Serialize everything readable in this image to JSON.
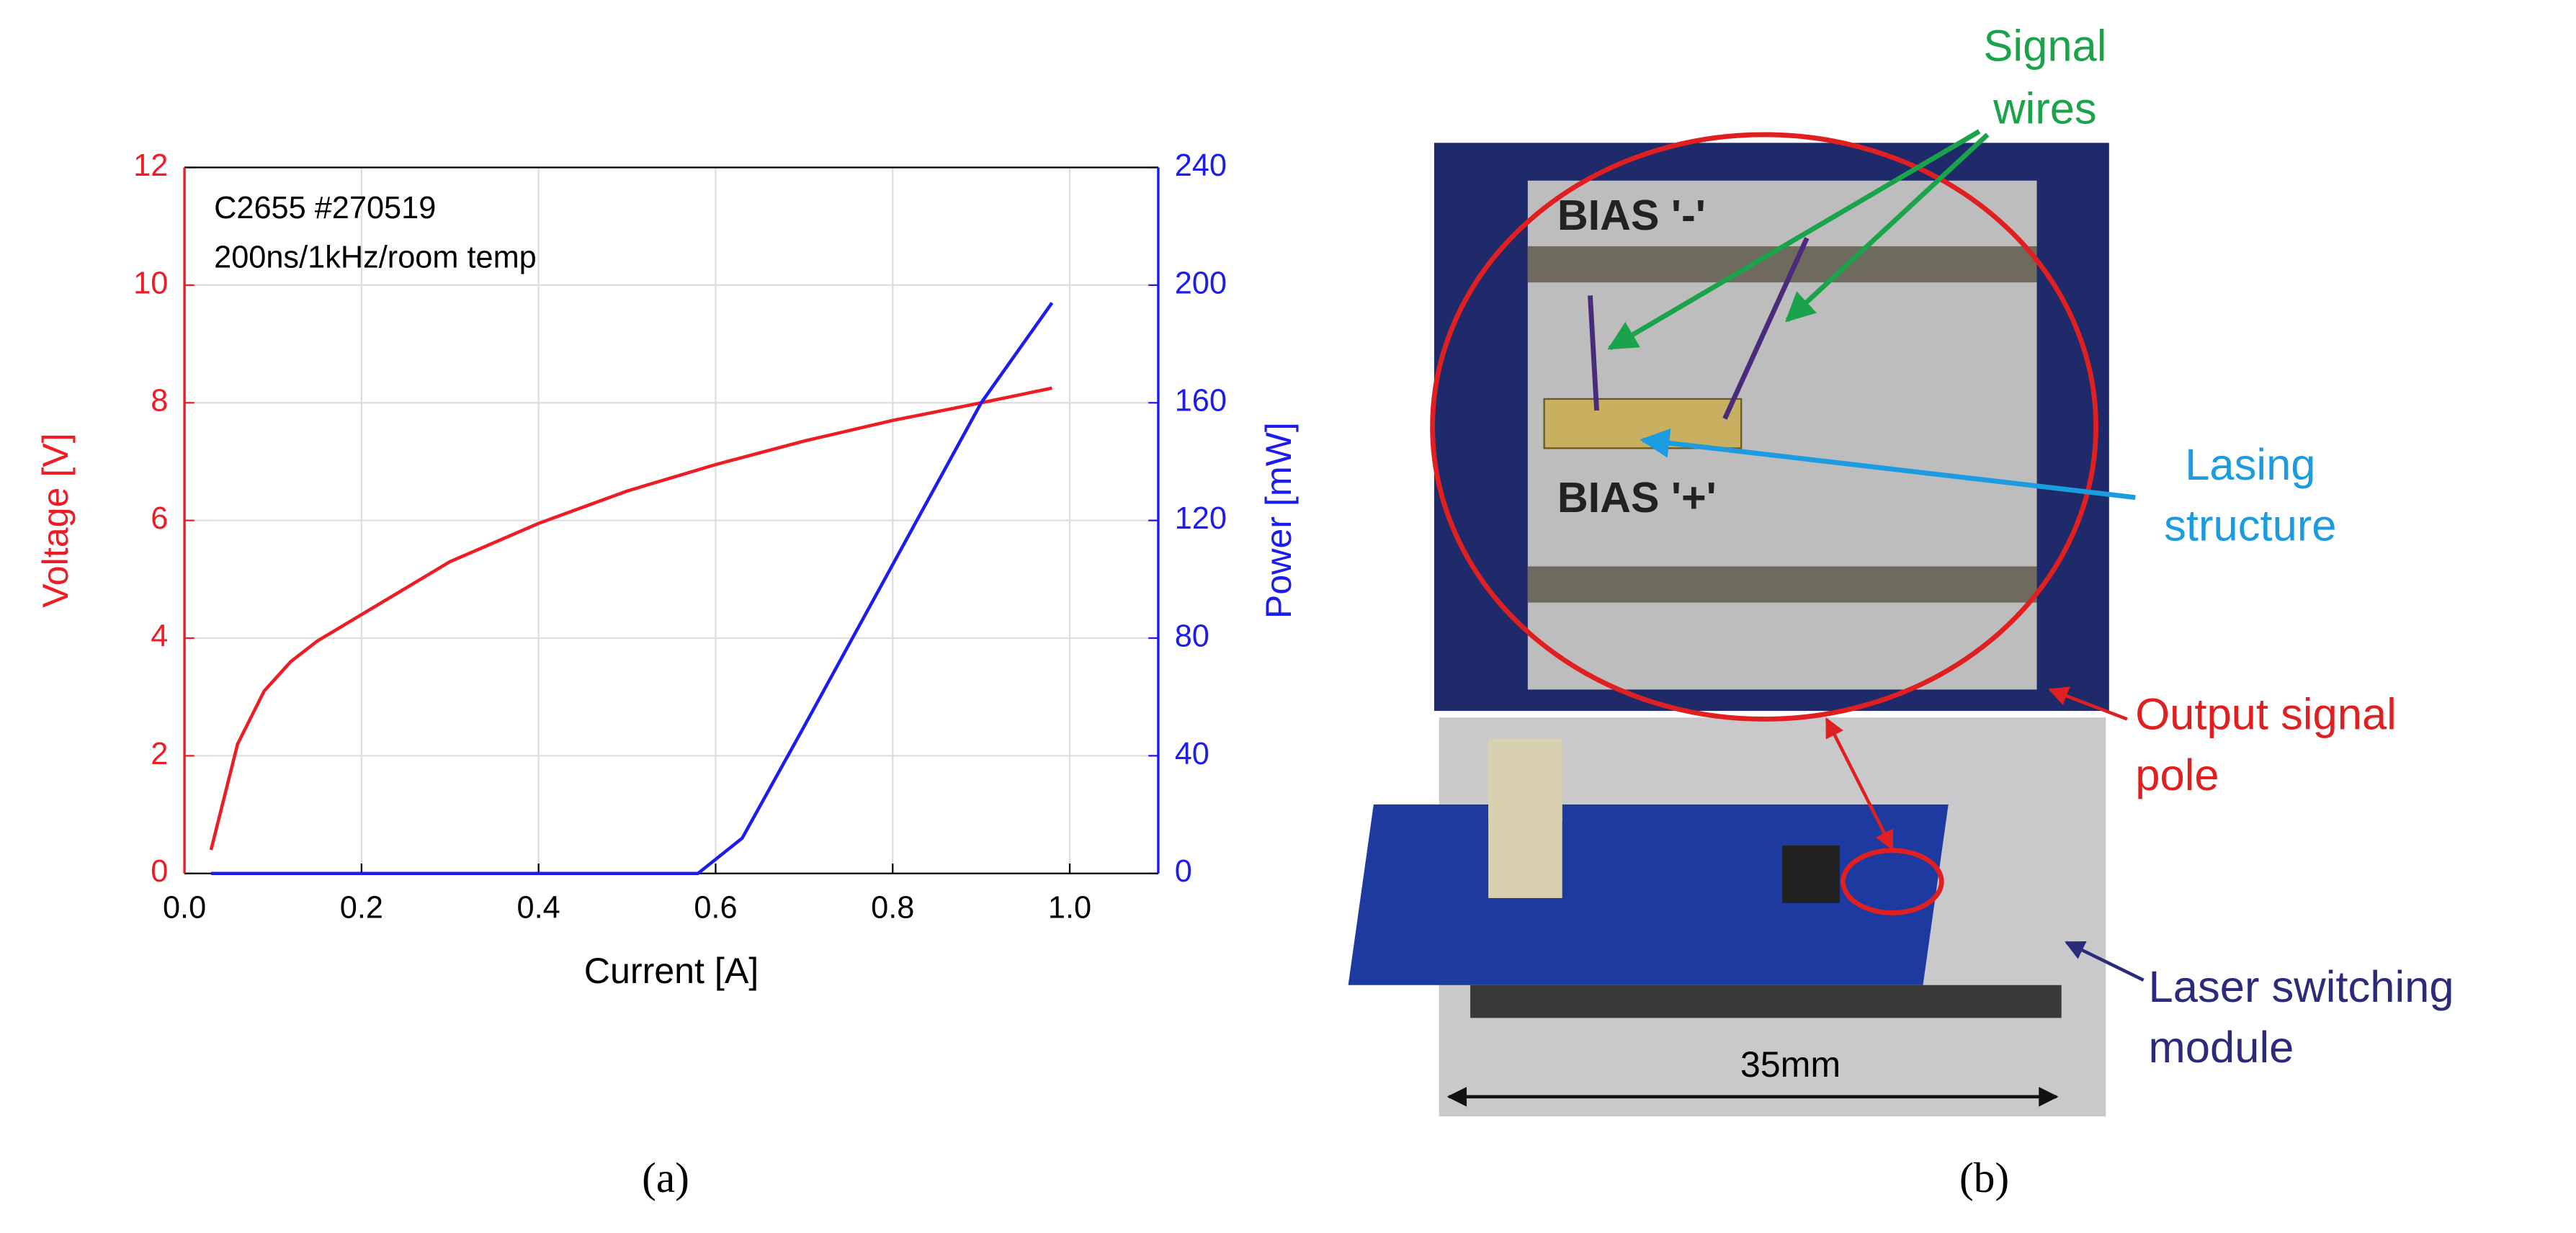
{
  "chart_data": {
    "type": "line",
    "annotations": [
      "C2655 #270519",
      "200ns/1kHz/room temp"
    ],
    "x_label": "Current [A]",
    "y_label": "Voltage [V]",
    "y2_label": "Power [mW]",
    "xlim": [
      0,
      1.1
    ],
    "xticks": [
      {
        "value": 0,
        "label": "0.0"
      },
      0.2,
      0.4,
      0.6,
      0.8,
      {
        "value": 1,
        "label": "1.0"
      }
    ],
    "ylim": [
      0,
      12
    ],
    "yticks": [
      0,
      2,
      4,
      6,
      8,
      10,
      12
    ],
    "y2lim": [
      0,
      240
    ],
    "y2ticks": [
      0,
      40,
      80,
      120,
      160,
      200,
      240
    ],
    "grid": true,
    "series": [
      {
        "name": "Voltage",
        "color": "#ee1c25",
        "axis": "y",
        "x": [
          0.03,
          0.06,
          0.09,
          0.12,
          0.15,
          0.2,
          0.3,
          0.4,
          0.5,
          0.6,
          0.7,
          0.8,
          0.9,
          0.98
        ],
        "values": [
          0.4,
          2.2,
          3.1,
          3.6,
          3.95,
          4.4,
          5.3,
          5.95,
          6.5,
          6.95,
          7.35,
          7.7,
          8.0,
          8.25
        ]
      },
      {
        "name": "Power",
        "color": "#1c1cee",
        "axis": "y2",
        "x": [
          0.03,
          0.58,
          0.63,
          0.7,
          0.8,
          0.9,
          0.98
        ],
        "values": [
          0,
          0,
          12,
          50,
          105,
          160,
          194
        ]
      }
    ]
  },
  "photo": {
    "signal_wires": [
      "Signal",
      "wires"
    ],
    "bias_minus": "BIAS '-'",
    "bias_plus": "BIAS '+'",
    "lasing_structure": [
      "Lasing",
      "structure"
    ],
    "output_signal_pole": [
      "Output signal",
      "pole"
    ],
    "laser_switching_module": [
      "Laser switching",
      "module"
    ],
    "scale": "35mm"
  },
  "panel_labels": [
    "(a)",
    "(b)"
  ]
}
